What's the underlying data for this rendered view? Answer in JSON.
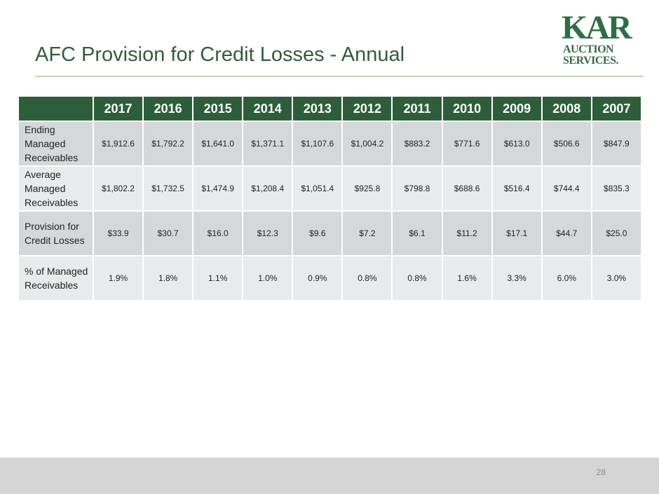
{
  "slide": {
    "title": "AFC Provision for Credit Losses - Annual",
    "page_number": "28",
    "logo": {
      "line1": "KAR",
      "line2": "AUCTION",
      "line3": "SERVICES.",
      "color": "#2d6e45"
    }
  },
  "table": {
    "years": [
      "2017",
      "2016",
      "2015",
      "2014",
      "2013",
      "2012",
      "2011",
      "2010",
      "2009",
      "2008",
      "2007"
    ],
    "rows": [
      {
        "label": "Ending Managed Receivables",
        "values": [
          "$1,912.6",
          "$1,792.2",
          "$1,641.0",
          "$1,371.1",
          "$1,107.6",
          "$1,004.2",
          "$883.2",
          "$771.6",
          "$613.0",
          "$506.6",
          "$847.9"
        ]
      },
      {
        "label": "Average Managed Receivables",
        "values": [
          "$1,802.2",
          "$1,732.5",
          "$1,474.9",
          "$1,208.4",
          "$1,051.4",
          "$925.8",
          "$798.8",
          "$688.6",
          "$516.4",
          "$744.4",
          "$835.3"
        ]
      },
      {
        "label": "Provision for Credit Losses",
        "values": [
          "$33.9",
          "$30.7",
          "$16.0",
          "$12.3",
          "$9.6",
          "$7.2",
          "$6.1",
          "$11.2",
          "$17.1",
          "$44.7",
          "$25.0"
        ]
      },
      {
        "label": "% of Managed Receivables",
        "values": [
          "1.9%",
          "1.8%",
          "1.1%",
          "1.0%",
          "0.9%",
          "0.8%",
          "0.8%",
          "1.6%",
          "3.3%",
          "6.0%",
          "3.0%"
        ]
      }
    ]
  },
  "colors": {
    "header_bg": "#2d5e3a",
    "title": "#2f5e3a",
    "row_odd": "#d5d8d9",
    "row_even": "#e8ebeb"
  }
}
